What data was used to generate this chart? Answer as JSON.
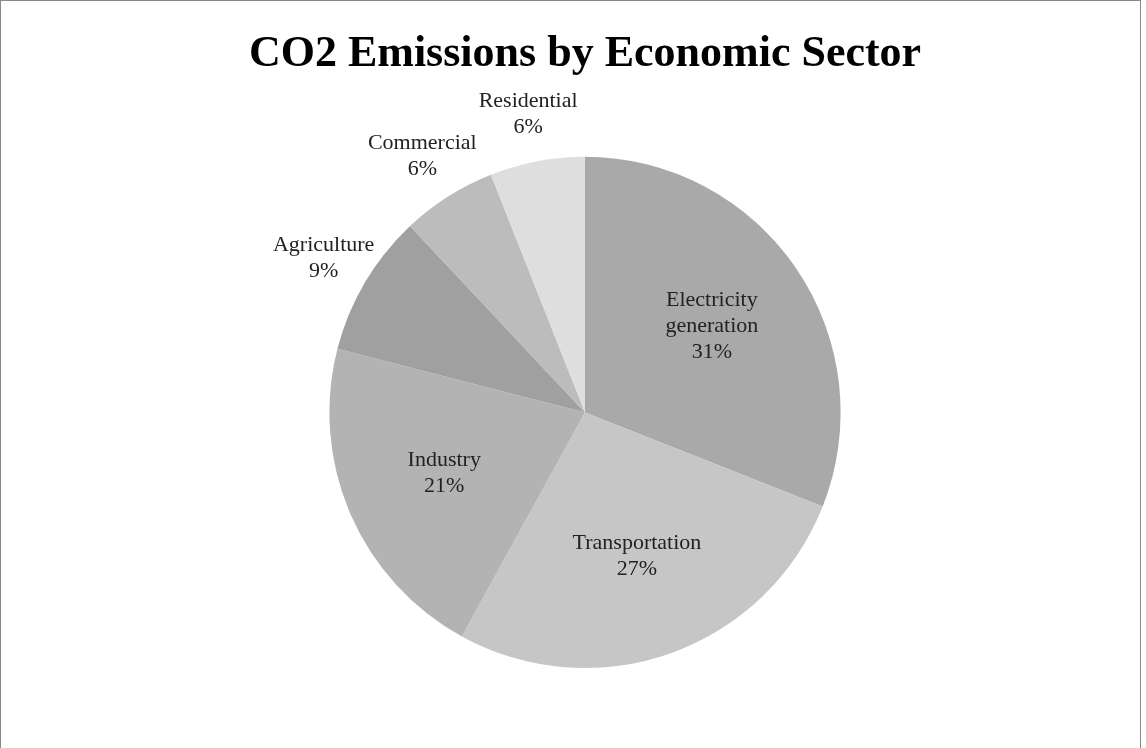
{
  "chart_data": {
    "type": "pie",
    "title": "CO2 Emissions by Economic Sector",
    "categories": [
      "Electricity generation",
      "Transportation",
      "Industry",
      "Agriculture",
      "Commercial",
      "Residential"
    ],
    "values": [
      31,
      27,
      21,
      9,
      6,
      6
    ],
    "colors": [
      "#a9a9a9",
      "#c6c6c6",
      "#b3b3b3",
      "#a0a0a0",
      "#bcbcbc",
      "#dedede"
    ],
    "value_labels": [
      "31%",
      "27%",
      "21%",
      "9%",
      "6%",
      "6%"
    ],
    "legend": false
  }
}
